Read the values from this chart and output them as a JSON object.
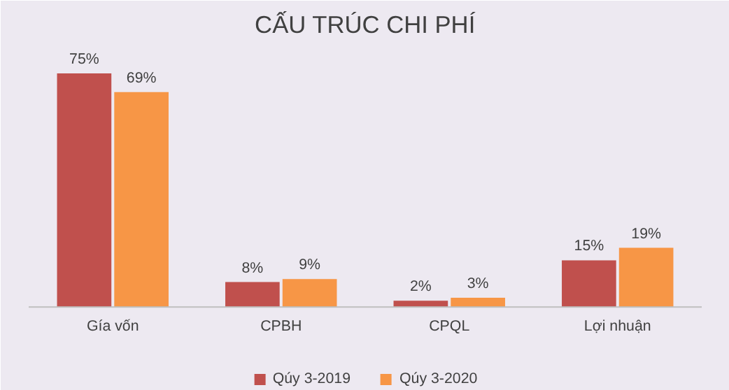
{
  "chart_data": {
    "type": "bar",
    "title": "CẤU TRÚC CHI PHÍ",
    "categories": [
      "Gía vốn",
      "CPBH",
      "CPQL",
      "Lợi nhuận"
    ],
    "series": [
      {
        "name": "Qúy 3-2019",
        "color": "#c0504d",
        "values": [
          75,
          8,
          2,
          15
        ],
        "value_labels": [
          "75%",
          "8%",
          "2%",
          "15%"
        ]
      },
      {
        "name": "Qúy 3-2020",
        "color": "#f79646",
        "values": [
          69,
          9,
          3,
          19
        ],
        "value_labels": [
          "69%",
          "9%",
          "3%",
          "19%"
        ]
      }
    ],
    "legend": "bottom"
  }
}
